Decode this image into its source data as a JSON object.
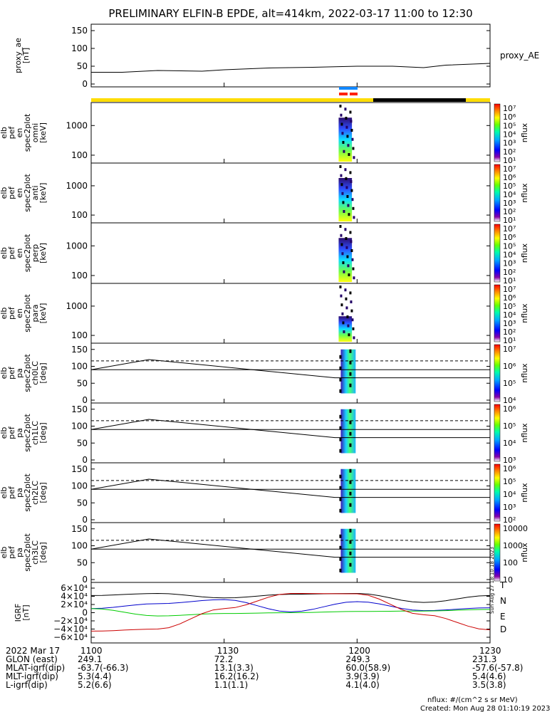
{
  "title": "PRELIMINARY ELFIN-B EPDE, alt=414km, 2022-03-17 11:00 to 12:30",
  "panels": [
    {
      "id": "proxy-ae",
      "ylabel": [
        "proxy_ae",
        "[nT]"
      ],
      "ticks": [
        "150",
        "100",
        "50",
        "0"
      ],
      "right_label": "proxy_AE"
    },
    {
      "id": "en-omni",
      "ylabel": [
        "elb",
        "pef",
        "en",
        "spec2plot",
        "omni",
        "[keV]"
      ],
      "ticks": [
        "1000",
        "100"
      ],
      "cbar_label": "nflux"
    },
    {
      "id": "en-anti",
      "ylabel": [
        "elb",
        "pef",
        "en",
        "spec2plot",
        "anti",
        "[keV]"
      ],
      "ticks": [
        "1000",
        "100"
      ],
      "cbar_label": "nflux"
    },
    {
      "id": "en-perp",
      "ylabel": [
        "elb",
        "pef",
        "en",
        "spec2plot",
        "perp",
        "[keV]"
      ],
      "ticks": [
        "1000",
        "100"
      ],
      "cbar_label": "nflux"
    },
    {
      "id": "en-para",
      "ylabel": [
        "elb",
        "pef",
        "en",
        "spec2plot",
        "para",
        "[keV]"
      ],
      "ticks": [
        "1000",
        "100"
      ],
      "cbar_label": "nflux"
    },
    {
      "id": "pa-ch0",
      "ylabel": [
        "elb",
        "pef",
        "pa",
        "spec2plot",
        "ch0LC",
        "[deg]"
      ],
      "ticks": [
        "150",
        "100",
        "50",
        "0"
      ],
      "cbar_label": "nflux"
    },
    {
      "id": "pa-ch1",
      "ylabel": [
        "elb",
        "pef",
        "pa",
        "spec2plot",
        "ch1LC",
        "[deg]"
      ],
      "ticks": [
        "150",
        "100",
        "50",
        "0"
      ],
      "cbar_label": "nflux"
    },
    {
      "id": "pa-ch2",
      "ylabel": [
        "elb",
        "pef",
        "pa",
        "spec2plot",
        "ch2LC",
        "[deg]"
      ],
      "ticks": [
        "150",
        "100",
        "50",
        "0"
      ],
      "cbar_label": "nflux"
    },
    {
      "id": "pa-ch3",
      "ylabel": [
        "elb",
        "pef",
        "pa",
        "spec2plot",
        "ch3LC",
        "[deg]"
      ],
      "ticks": [
        "150",
        "100",
        "50",
        "0"
      ],
      "cbar_label": "nflux"
    },
    {
      "id": "igrf",
      "ylabel": [
        "IGRF",
        "[nT]"
      ],
      "ticks": [
        "6×10⁴",
        "4×10⁴",
        "2×10⁴",
        "0",
        "−2×10⁴",
        "−4×10⁴",
        "−6×10⁴"
      ]
    }
  ],
  "colorbar_ticks": {
    "en": [
      "10⁷",
      "10⁶",
      "10⁵",
      "10⁴",
      "10³",
      "10²",
      "10¹"
    ],
    "pa01": [
      "10⁷",
      "10⁶",
      "10⁵",
      "10⁴"
    ],
    "pa12": [
      "10⁶",
      "10⁵",
      "10⁴",
      "10³"
    ],
    "pa23": [
      "10⁶",
      "10⁵",
      "10⁴",
      "10³",
      "10²"
    ],
    "pa3": [
      "10000",
      "1000",
      "100",
      "10"
    ]
  },
  "igrf_legend": [
    "T",
    "N",
    "E",
    "D"
  ],
  "side_stamp": "Sun Aug 27 18:10:18 2023",
  "footer": {
    "header": [
      "2022 Mar 17",
      "1100",
      "1130",
      "1200",
      "1230"
    ],
    "rows": [
      [
        "GLON (east)",
        "249.1",
        "72.2",
        "249.3",
        "231.3"
      ],
      [
        "MLAT-igrf(dip)",
        "-63.7(-66.3)",
        "13.1(3.3)",
        "60.0(58.9)",
        "-57.6(-57.8)"
      ],
      [
        "MLT-igrf(dip)",
        "5.3(4.4)",
        "16.2(16.2)",
        "3.9(3.9)",
        "5.4(4.6)"
      ],
      [
        "L-igrf(dip)",
        "5.2(6.6)",
        "1.1(1.1)",
        "4.1(4.0)",
        "3.5(3.8)"
      ]
    ],
    "units": "nflux: #/(cm^2 s sr MeV)",
    "created": "Created: Mon Aug 28 01:10:19 2023"
  },
  "chart_data": [
    {
      "type": "line",
      "title": "proxy_AE",
      "x_unit": "UT minutes",
      "x": [
        0,
        7,
        15,
        25,
        30,
        40,
        50,
        60,
        68,
        75,
        80,
        90
      ],
      "y": [
        33,
        33,
        38,
        36,
        40,
        45,
        47,
        50,
        50,
        46,
        53,
        58
      ],
      "ylim": [
        0,
        160
      ],
      "xlim": [
        0,
        90
      ],
      "grid": false
    },
    {
      "type": "heatmap",
      "title": "en omni",
      "xlim": [
        0,
        90
      ],
      "ylim_keV": [
        55,
        7000
      ],
      "y_scale": "log",
      "active_interval_minutes": [
        56,
        60
      ]
    },
    {
      "type": "line",
      "title": "pitch angle LC lines",
      "x": [
        0,
        13,
        55,
        90
      ],
      "lc_upper_dashed": [
        116,
        116,
        116,
        116
      ],
      "lc_lower_solid": [
        90,
        120,
        66,
        66
      ],
      "ylim": [
        0,
        180
      ]
    },
    {
      "type": "line",
      "title": "IGRF",
      "x": [
        0,
        15,
        30,
        45,
        60,
        75,
        90
      ],
      "series": [
        {
          "name": "T",
          "color": "#000000",
          "values": [
            42000,
            47000,
            36000,
            45000,
            47000,
            25000,
            42000
          ]
        },
        {
          "name": "N",
          "color": "#0000cc",
          "values": [
            10000,
            22000,
            32000,
            2000,
            27000,
            5000,
            12000
          ]
        },
        {
          "name": "E",
          "color": "#00cc00",
          "values": [
            10000,
            -8000,
            -2000,
            0,
            3000,
            4000,
            8000
          ]
        },
        {
          "name": "D",
          "color": "#cc0000",
          "values": [
            -45000,
            -40000,
            10000,
            47000,
            46000,
            -5000,
            -42000
          ]
        }
      ],
      "ylim": [
        -60000,
        60000
      ]
    }
  ]
}
